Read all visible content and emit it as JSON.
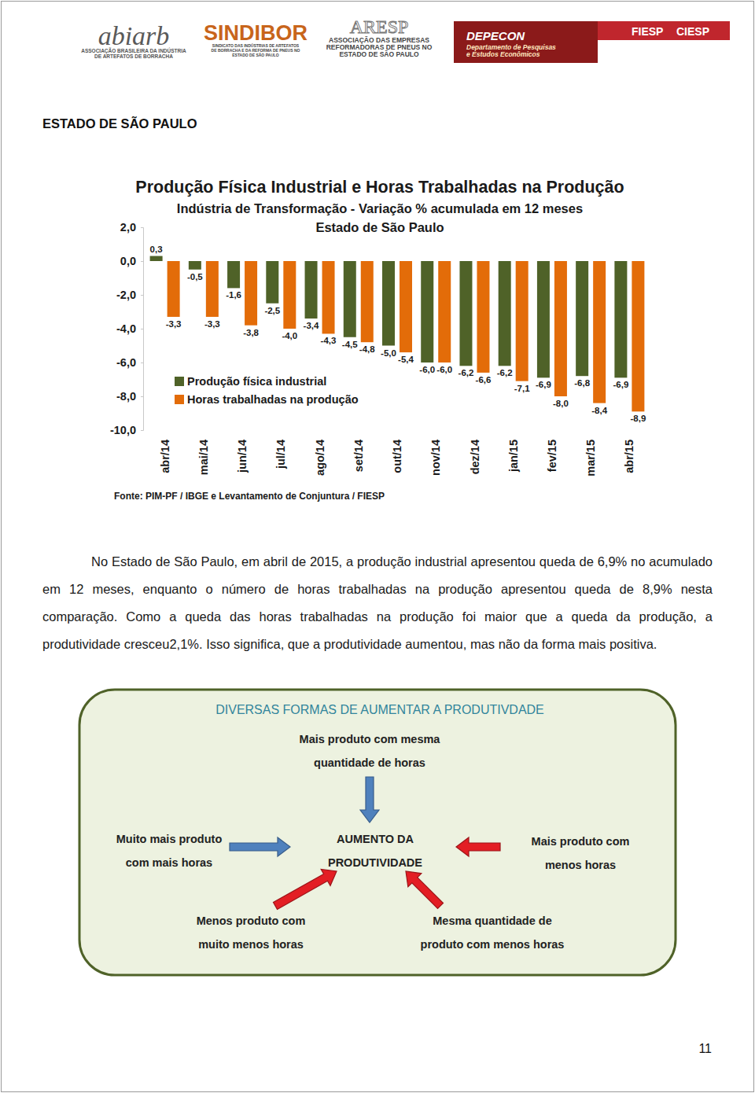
{
  "header": {
    "logos": [
      {
        "title": "abiarb",
        "lines": [
          "ASSOCIAÇÃO BRASILEIRA DA INDÚSTRIA",
          "DE ARTEFATOS DE BORRACHA"
        ]
      },
      {
        "title": "SINDIBOR",
        "lines": [
          "SINDICATO DAS INDÚSTRIAS DE ARTEFATOS",
          "DE BORRACHA E DA REFORMA DE PNEUS NO",
          "ESTADO DE SÃO PAULO"
        ]
      },
      {
        "title": "ARESP",
        "lines": [
          "ASSOCIAÇÃO DAS EMPRESAS",
          "REFORMADORAS DE PNEUS NO",
          "ESTADO DE SÃO PAULO"
        ]
      },
      {
        "title": "DEPECON",
        "lines": [
          "Departamento de Pesquisas",
          "e Estudos Econômicos"
        ]
      },
      {
        "title": "FIESP",
        "lines": [
          "CIESP"
        ]
      }
    ]
  },
  "heading": "ESTADO DE SÃO PAULO",
  "chart_data": {
    "type": "bar",
    "title": "Produção Física Industrial e Horas Trabalhadas na Produção",
    "subtitle": [
      "Indústria de Transformação - Variação % acumulada em 12 meses",
      "Estado de São Paulo"
    ],
    "source": "Fonte: PIM-PF / IBGE e Levantamento de Conjuntura / FIESP",
    "categories": [
      "abr/14",
      "mai/14",
      "jun/14",
      "jul/14",
      "ago/14",
      "set/14",
      "out/14",
      "nov/14",
      "dez/14",
      "jan/15",
      "fev/15",
      "mar/15",
      "abr/15"
    ],
    "series": [
      {
        "name": "Produção física industrial",
        "color": "#4f6228",
        "values": [
          0.3,
          -0.5,
          -1.6,
          -2.5,
          -3.4,
          -4.5,
          -5.0,
          -6.0,
          -6.2,
          -6.2,
          -6.9,
          -6.8,
          -6.9
        ],
        "value_labels": [
          "0,3",
          "-0,5",
          "-1,6",
          "-2,5",
          "-3,4",
          "-4,5",
          "-5,0",
          "-6,0",
          "-6,2",
          "-6,2",
          "-6,9",
          "-6,8",
          "-6,9"
        ]
      },
      {
        "name": "Horas trabalhadas na produção",
        "color": "#e36c09",
        "values": [
          -3.3,
          -3.3,
          -3.8,
          -4.0,
          -4.3,
          -4.8,
          -5.4,
          -6.0,
          -6.6,
          -7.1,
          -8.0,
          -8.4,
          -8.9
        ],
        "value_labels": [
          "-3,3",
          "-3,3",
          "-3,8",
          "-4,0",
          "-4,3",
          "-4,8",
          "-5,4",
          "-6,0",
          "-6,6",
          "-7,1",
          "-8,0",
          "-8,4",
          "-8,9"
        ]
      }
    ],
    "ylim": [
      -10,
      2
    ],
    "yticks": [
      {
        "value": -10,
        "label": "-10,0"
      },
      {
        "value": -8,
        "label": "-8,0"
      },
      {
        "value": -6,
        "label": "-6,0"
      },
      {
        "value": -4,
        "label": "-4,0"
      },
      {
        "value": -2,
        "label": "-2,0"
      },
      {
        "value": 0,
        "label": "0,0"
      },
      {
        "value": 2,
        "label": "2,0"
      }
    ],
    "grid": false,
    "legend": "bottom-left",
    "data_labels": true
  },
  "paragraph": "No Estado de São Paulo, em abril de 2015, a produção industrial apresentou queda de 6,9% no acumulado em 12 meses, enquanto o número de horas trabalhadas na produção apresentou queda de 8,9% nesta comparação. Como a queda das horas trabalhadas na produção foi maior que a queda da produção, a produtividade cresceu2,1%. Isso significa, que a produtividade aumentou, mas não da forma mais positiva.",
  "diagram": {
    "title": "DIVERSAS FORMAS DE AUMENTAR A PRODUTIVDADE",
    "nodes": [
      {
        "lines": [
          "Mais produto com mesma",
          "quantidade de horas"
        ]
      },
      {
        "lines": [
          "Muito mais produto",
          "com mais horas"
        ]
      },
      {
        "lines": [
          "AUMENTO DA",
          "PRODUTIVIDADE"
        ]
      },
      {
        "lines": [
          "Mais produto com",
          "menos horas"
        ]
      },
      {
        "lines": [
          "Menos produto com",
          "muito menos horas"
        ]
      },
      {
        "lines": [
          "Mesma quantidade de",
          "produto com menos horas"
        ]
      }
    ]
  },
  "page_number": "11"
}
